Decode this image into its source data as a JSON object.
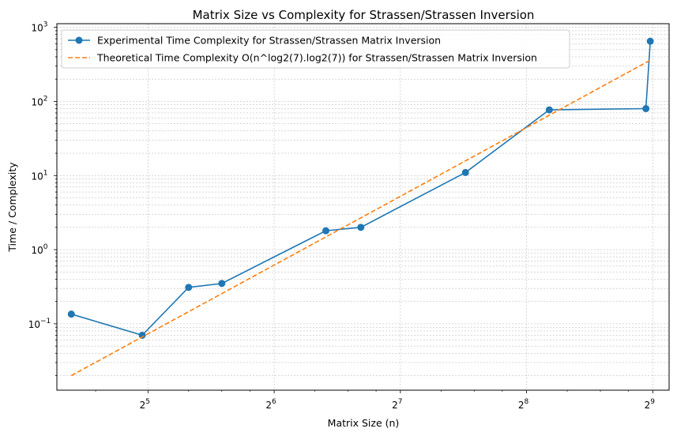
{
  "chart_data": {
    "type": "line",
    "title": "Matrix Size vs Complexity for Strassen/Strassen Inversion",
    "xlabel": "Matrix Size (n)",
    "ylabel": "Time / Complexity",
    "xscale": "log2",
    "yscale": "log10",
    "xlim": [
      19.4,
      560
    ],
    "ylim": [
      0.0127,
      1120
    ],
    "grid": true,
    "legend_position": "top-left",
    "x_ticks": [
      {
        "value": 32,
        "base": "2",
        "exp": "5"
      },
      {
        "value": 64,
        "base": "2",
        "exp": "6"
      },
      {
        "value": 128,
        "base": "2",
        "exp": "7"
      },
      {
        "value": 256,
        "base": "2",
        "exp": "8"
      },
      {
        "value": 512,
        "base": "2",
        "exp": "9"
      }
    ],
    "y_ticks": [
      {
        "value": 0.1,
        "base": "10",
        "exp": "−1"
      },
      {
        "value": 1,
        "base": "10",
        "exp": "0"
      },
      {
        "value": 10,
        "base": "10",
        "exp": "1"
      },
      {
        "value": 100,
        "base": "10",
        "exp": "2"
      },
      {
        "value": 1000,
        "base": "10",
        "exp": "3"
      }
    ],
    "series": [
      {
        "name": "Experimental Time Complexity for Strassen/Strassen Matrix Inversion",
        "color": "#1f77b4",
        "style": "solid",
        "marker": "circle",
        "x": [
          21,
          31,
          40,
          48,
          85,
          103,
          183,
          290,
          493,
          505
        ],
        "y": [
          0.135,
          0.07,
          0.31,
          0.35,
          1.8,
          2.0,
          11,
          77,
          80,
          650
        ]
      },
      {
        "name": "Theoretical Time Complexity O(n^log2(7).log2(7)) for Strassen/Strassen Matrix Inversion",
        "color": "#ff7f0e",
        "style": "dashed",
        "marker": "none",
        "x": [
          21,
          505
        ],
        "y": [
          0.02,
          360
        ]
      }
    ]
  }
}
